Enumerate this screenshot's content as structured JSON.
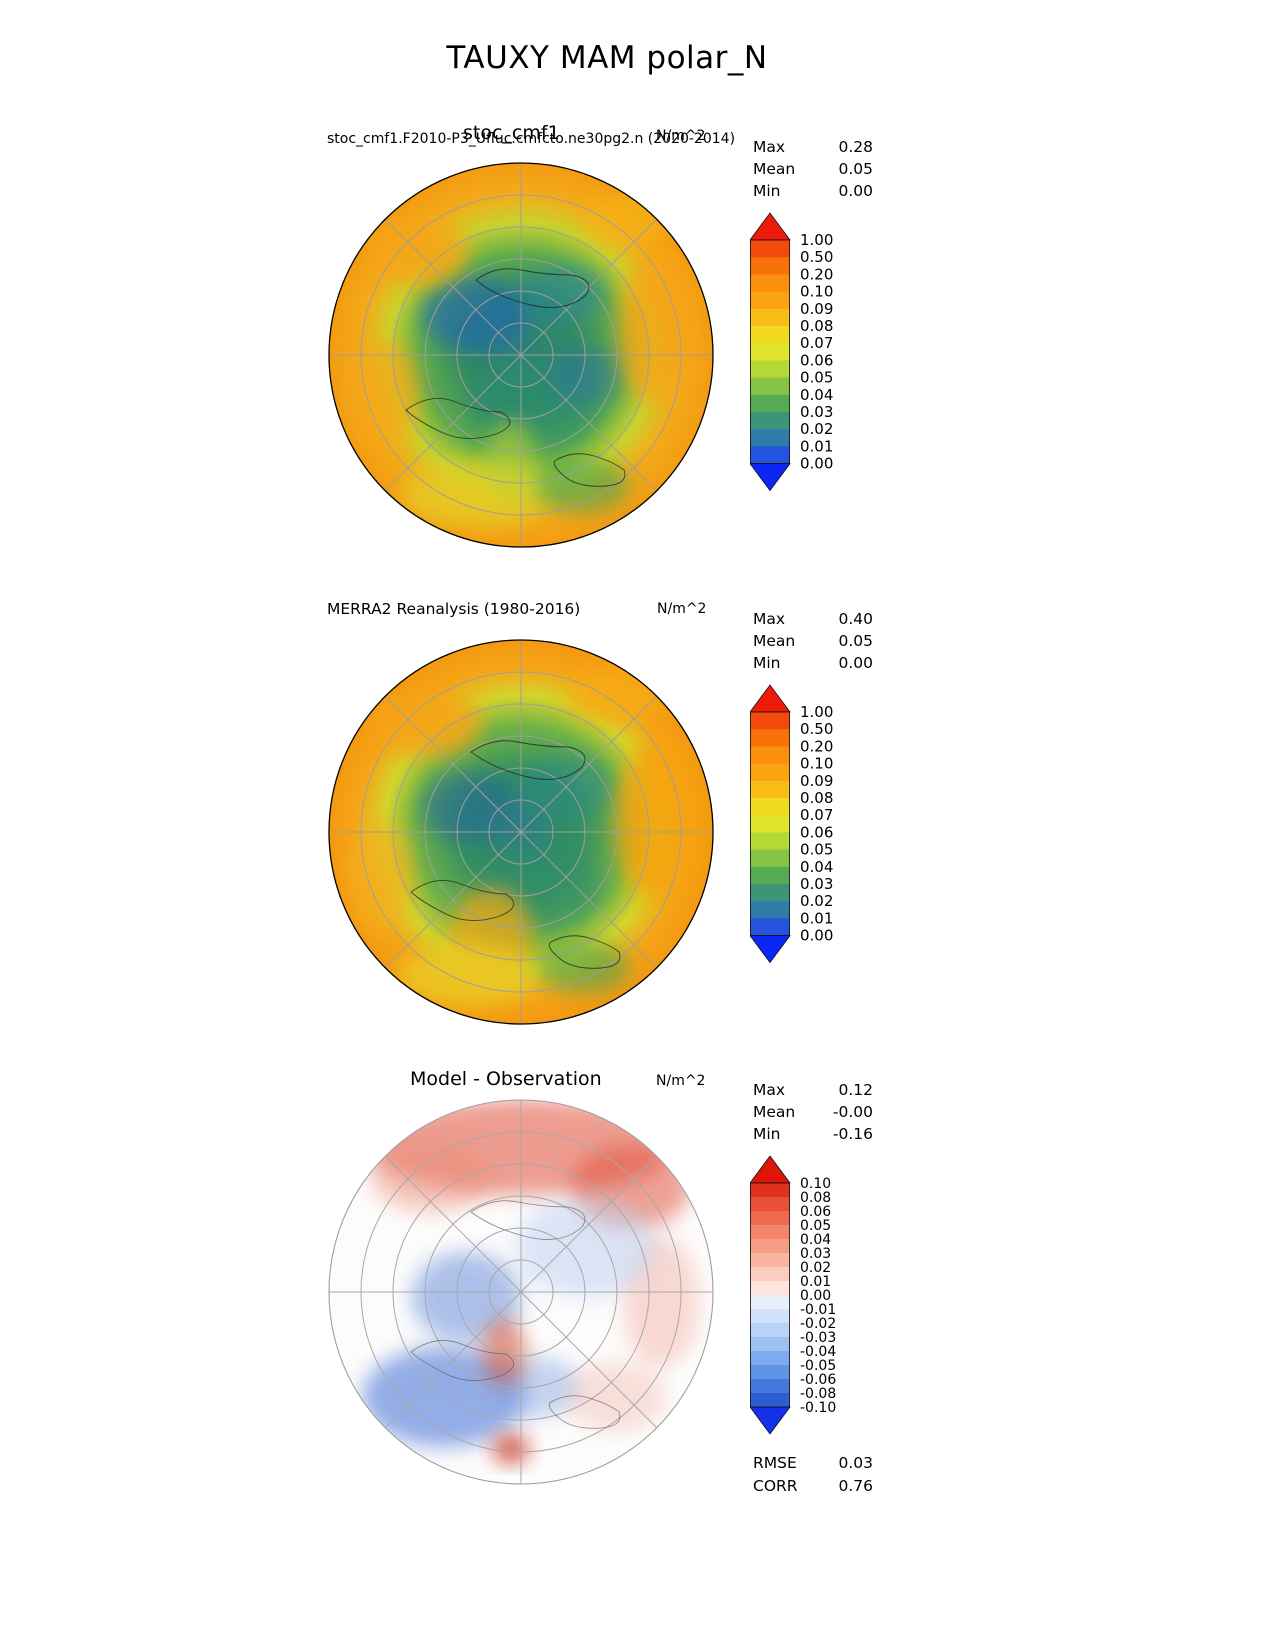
{
  "page_title": "TAUXY MAM polar_N",
  "panels": [
    {
      "name": "model",
      "case_label": "stoc_cmf1.F2010-P3_Ufluc.cmfcto.ne30pg2.n (2020-2014)",
      "title_overlay": "stoc_cmf1",
      "units": "N/m^2",
      "stats": {
        "max_label": "Max",
        "max": "0.28",
        "mean_label": "Mean",
        "mean": "0.05",
        "min_label": "Min",
        "min": "0.00"
      },
      "colorbar": {
        "ticks": [
          "1.00",
          "0.50",
          "0.20",
          "0.10",
          "0.09",
          "0.08",
          "0.07",
          "0.06",
          "0.05",
          "0.04",
          "0.03",
          "0.02",
          "0.01",
          "0.00"
        ],
        "segments": [
          "#f4490c",
          "#f8700a",
          "#fb8e0b",
          "#fca312",
          "#f9bd18",
          "#f2da20",
          "#dfe52a",
          "#b4d934",
          "#84c343",
          "#55ab52",
          "#3c9579",
          "#2f7ca6",
          "#2453dd"
        ],
        "arrow_top": "#ee1a0a",
        "arrow_bottom": "#0b27f5"
      }
    },
    {
      "name": "obs",
      "title": "MERRA2 Reanalysis (1980-2016)",
      "units": "N/m^2",
      "stats": {
        "max_label": "Max",
        "max": "0.40",
        "mean_label": "Mean",
        "mean": "0.05",
        "min_label": "Min",
        "min": "0.00"
      },
      "colorbar": {
        "ticks": [
          "1.00",
          "0.50",
          "0.20",
          "0.10",
          "0.09",
          "0.08",
          "0.07",
          "0.06",
          "0.05",
          "0.04",
          "0.03",
          "0.02",
          "0.01",
          "0.00"
        ],
        "segments": [
          "#f4490c",
          "#f8700a",
          "#fb8e0b",
          "#fca312",
          "#f9bd18",
          "#f2da20",
          "#dfe52a",
          "#b4d934",
          "#84c343",
          "#55ab52",
          "#3c9579",
          "#2f7ca6",
          "#2453dd"
        ],
        "arrow_top": "#ee1a0a",
        "arrow_bottom": "#0b27f5"
      }
    },
    {
      "name": "diff",
      "title": "Model - Observation",
      "units": "N/m^2",
      "stats": {
        "max_label": "Max",
        "max": "0.12",
        "mean_label": "Mean",
        "mean": "-0.00",
        "min_label": "Min",
        "min": "-0.16"
      },
      "colorbar": {
        "ticks": [
          "0.10",
          "0.08",
          "0.06",
          "0.05",
          "0.04",
          "0.03",
          "0.02",
          "0.01",
          "0.00",
          "-0.01",
          "-0.02",
          "-0.03",
          "-0.04",
          "-0.05",
          "-0.06",
          "-0.08",
          "-0.10"
        ],
        "segments": [
          "#e0301e",
          "#ea4f38",
          "#f06a52",
          "#f4846c",
          "#f79d86",
          "#fab4a1",
          "#fcccbe",
          "#fee4dc",
          "#e8f0fc",
          "#d2e2fa",
          "#b9d3f7",
          "#9cc0f2",
          "#7eabed",
          "#6093e5",
          "#4578da",
          "#2f5ccf"
        ],
        "arrow_top": "#e0150a",
        "arrow_bottom": "#1430ea"
      }
    }
  ],
  "footer": {
    "rmse_label": "RMSE",
    "rmse": "0.03",
    "corr_label": "CORR",
    "corr": "0.76"
  },
  "chart_data": [
    {
      "type": "heatmap",
      "subtype": "north-polar-stereographic contour map",
      "variable": "TAUXY",
      "season": "MAM",
      "region": "polar_N",
      "title": "stoc_cmf1 (stoc_cmf1.F2010-P3_Ufluc.cmfcto.ne30pg2.n, 2020-2014)",
      "units": "N/m^2",
      "stats": {
        "max": 0.28,
        "mean": 0.05,
        "min": 0.0
      },
      "contour_levels": [
        0.0,
        0.01,
        0.02,
        0.03,
        0.04,
        0.05,
        0.06,
        0.07,
        0.08,
        0.09,
        0.1,
        0.2,
        0.5,
        1.0
      ],
      "colormap": "rainbow blue-green-yellow-orange-red, extended arrows both ends",
      "legend_position": "right"
    },
    {
      "type": "heatmap",
      "subtype": "north-polar-stereographic contour map",
      "variable": "TAUXY",
      "season": "MAM",
      "region": "polar_N",
      "title": "MERRA2 Reanalysis (1980-2016)",
      "units": "N/m^2",
      "stats": {
        "max": 0.4,
        "mean": 0.05,
        "min": 0.0
      },
      "contour_levels": [
        0.0,
        0.01,
        0.02,
        0.03,
        0.04,
        0.05,
        0.06,
        0.07,
        0.08,
        0.09,
        0.1,
        0.2,
        0.5,
        1.0
      ],
      "colormap": "rainbow blue-green-yellow-orange-red, extended arrows both ends",
      "legend_position": "right"
    },
    {
      "type": "heatmap",
      "subtype": "north-polar-stereographic contour map (difference)",
      "variable": "TAUXY",
      "season": "MAM",
      "region": "polar_N",
      "title": "Model - Observation",
      "units": "N/m^2",
      "stats": {
        "max": 0.12,
        "mean": -0.0,
        "min": -0.16,
        "rmse": 0.03,
        "corr": 0.76
      },
      "contour_levels": [
        -0.1,
        -0.08,
        -0.06,
        -0.05,
        -0.04,
        -0.03,
        -0.02,
        -0.01,
        0.0,
        0.01,
        0.02,
        0.03,
        0.04,
        0.05,
        0.06,
        0.08,
        0.1
      ],
      "colormap": "diverging blue-white-red, extended arrows both ends",
      "legend_position": "right"
    }
  ]
}
